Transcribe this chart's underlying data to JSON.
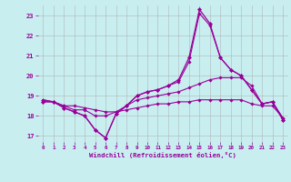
{
  "background_color": "#c8eef0",
  "grid_color": "#aaaaaa",
  "line_color": "#990099",
  "xlabel": "Windchill (Refroidissement éolien,°C)",
  "xlabel_color": "#990099",
  "tick_color": "#990099",
  "ylim": [
    16.7,
    23.5
  ],
  "xlim": [
    -0.5,
    23.5
  ],
  "yticks": [
    17,
    18,
    19,
    20,
    21,
    22,
    23
  ],
  "xticks": [
    0,
    1,
    2,
    3,
    4,
    5,
    6,
    7,
    8,
    9,
    10,
    11,
    12,
    13,
    14,
    15,
    16,
    17,
    18,
    19,
    20,
    21,
    22,
    23
  ],
  "series": [
    [
      18.7,
      18.7,
      18.4,
      18.2,
      18.0,
      17.3,
      16.9,
      18.1,
      18.5,
      19.0,
      19.2,
      19.3,
      19.5,
      19.8,
      20.9,
      23.3,
      22.6,
      20.9,
      20.3,
      20.0,
      19.3,
      18.6,
      18.7,
      17.8
    ],
    [
      18.7,
      18.7,
      18.4,
      18.2,
      18.0,
      17.3,
      16.9,
      18.1,
      18.5,
      19.0,
      19.2,
      19.3,
      19.5,
      19.7,
      20.7,
      23.1,
      22.5,
      20.9,
      20.3,
      20.0,
      19.3,
      18.6,
      18.7,
      17.8
    ],
    [
      18.8,
      18.7,
      18.5,
      18.3,
      18.3,
      18.0,
      18.0,
      18.2,
      18.5,
      18.8,
      18.9,
      19.0,
      19.1,
      19.2,
      19.4,
      19.6,
      19.8,
      19.9,
      19.9,
      19.9,
      19.5,
      18.6,
      18.7,
      17.9
    ],
    [
      18.8,
      18.7,
      18.5,
      18.5,
      18.4,
      18.3,
      18.2,
      18.2,
      18.3,
      18.4,
      18.5,
      18.6,
      18.6,
      18.7,
      18.7,
      18.8,
      18.8,
      18.8,
      18.8,
      18.8,
      18.6,
      18.5,
      18.5,
      17.9
    ]
  ],
  "figsize": [
    3.2,
    2.0
  ],
  "dpi": 100
}
